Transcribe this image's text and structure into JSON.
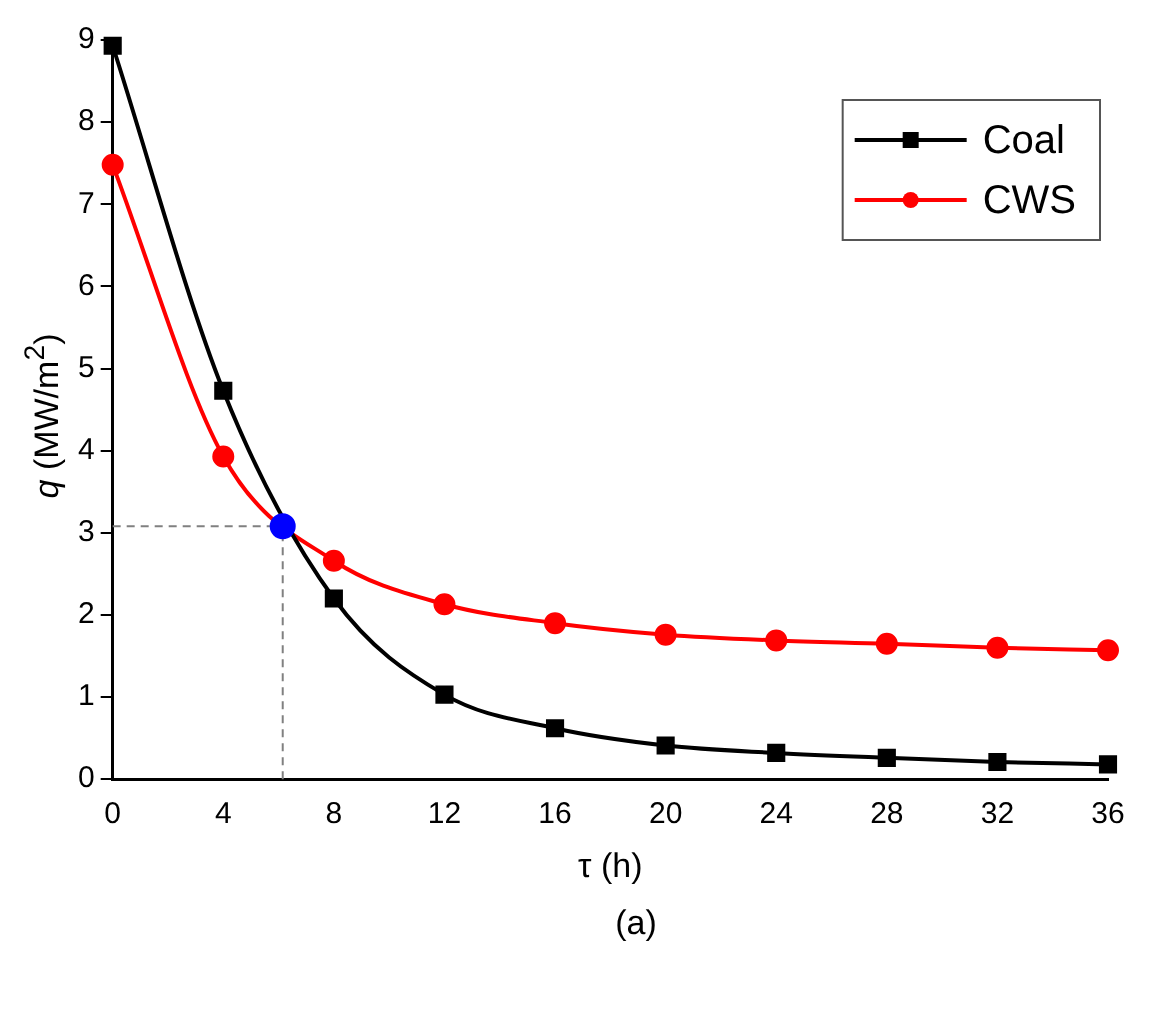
{
  "chart_data": {
    "type": "line",
    "xlabel": "τ (h)",
    "ylabel": "q (MW/m$^{2}$)",
    "x": [
      0,
      4,
      8,
      12,
      16,
      20,
      24,
      28,
      32,
      36
    ],
    "series": [
      {
        "name": "Coal",
        "color": "#000000",
        "marker": "square",
        "values": [
          8.93,
          4.73,
          2.2,
          1.03,
          0.62,
          0.41,
          0.32,
          0.26,
          0.21,
          0.18
        ]
      },
      {
        "name": "CWS",
        "color": "#ff0000",
        "marker": "circle",
        "values": [
          7.48,
          3.93,
          2.66,
          2.13,
          1.9,
          1.76,
          1.69,
          1.65,
          1.6,
          1.57
        ]
      },
      {
        "type": "scatter",
        "color": "#0000ff",
        "marker": "circle",
        "x": [
          6.15
        ],
        "values": [
          3.08
        ]
      }
    ],
    "ref_lines": [
      {
        "axis": "x",
        "value": 6.15,
        "color": "#808080",
        "line_style": "dashed"
      },
      {
        "axis": "y",
        "value": 3.08,
        "color": "#808080",
        "line_style": "dashed"
      }
    ],
    "xlim": [
      0,
      36
    ],
    "xticks": [
      0,
      4,
      8,
      12,
      16,
      20,
      24,
      28,
      32,
      36
    ],
    "ylim": [
      0,
      9
    ],
    "yticks": [
      0,
      1,
      2,
      3,
      4,
      5,
      6,
      7,
      8,
      9
    ],
    "grid": false,
    "legend": "top right",
    "annotations": [
      "(a)"
    ]
  }
}
